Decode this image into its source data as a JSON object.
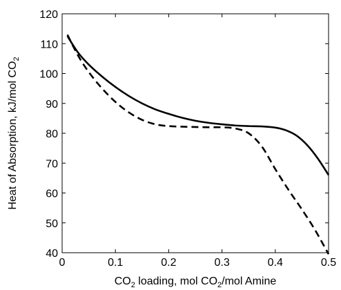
{
  "chart_data": {
    "type": "line",
    "title": "",
    "xlabel": {
      "parts": [
        "CO",
        "2",
        " loading, mol CO",
        "2",
        "/mol Amine"
      ],
      "full": "CO2 loading, mol CO2/mol Amine"
    },
    "ylabel": {
      "parts": [
        "Heat of Absorption, kJ/mol CO",
        "2"
      ],
      "full": "Heat of Absorption, kJ/mol CO2"
    },
    "xlim": [
      0,
      0.5
    ],
    "ylim": [
      40,
      120
    ],
    "xticks": [
      0,
      0.1,
      0.2,
      0.3,
      0.4,
      0.5
    ],
    "xtick_labels": [
      "0",
      "0.1",
      "0.2",
      "0.3",
      "0.4",
      "0.5"
    ],
    "yticks": [
      40,
      50,
      60,
      70,
      80,
      90,
      100,
      110,
      120
    ],
    "ytick_labels": [
      "40",
      "50",
      "60",
      "70",
      "80",
      "90",
      "100",
      "110",
      "120"
    ],
    "grid": false,
    "legend": "none",
    "series": [
      {
        "style": "solid",
        "color": "#000000",
        "x": [
          0.01,
          0.03,
          0.05,
          0.075,
          0.1,
          0.125,
          0.15,
          0.175,
          0.2,
          0.225,
          0.25,
          0.275,
          0.3,
          0.325,
          0.35,
          0.375,
          0.4,
          0.42,
          0.44,
          0.46,
          0.48,
          0.5
        ],
        "y": [
          112.5,
          107.0,
          103.0,
          99.0,
          95.5,
          92.5,
          90.0,
          88.0,
          86.5,
          85.2,
          84.2,
          83.5,
          83.0,
          82.6,
          82.4,
          82.3,
          81.9,
          81.0,
          79.2,
          76.0,
          71.5,
          66.0
        ]
      },
      {
        "style": "dashed",
        "color": "#000000",
        "x": [
          0.01,
          0.03,
          0.05,
          0.075,
          0.1,
          0.125,
          0.15,
          0.175,
          0.2,
          0.225,
          0.25,
          0.275,
          0.3,
          0.325,
          0.35,
          0.375,
          0.4,
          0.425,
          0.45,
          0.475,
          0.5
        ],
        "y": [
          113.0,
          106.0,
          100.5,
          95.0,
          90.5,
          87.0,
          84.5,
          83.0,
          82.4,
          82.2,
          82.1,
          82.0,
          82.0,
          81.6,
          80.0,
          75.5,
          68.0,
          61.0,
          54.5,
          47.5,
          39.5
        ]
      }
    ]
  }
}
